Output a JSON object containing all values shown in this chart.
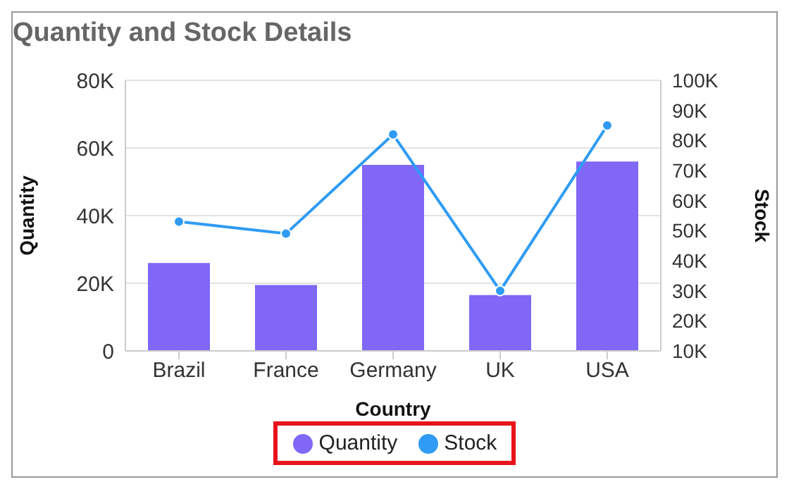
{
  "chart_data": {
    "type": "bar",
    "title": "Quantity and Stock Details",
    "xlabel": "Country",
    "ylabel": "Quantity",
    "y2label": "Stock",
    "categories": [
      "Brazil",
      "France",
      "Germany",
      "UK",
      "USA"
    ],
    "series": [
      {
        "name": "Quantity",
        "color": "#8067f5",
        "values": [
          26000,
          19500,
          55000,
          16500,
          56000
        ]
      },
      {
        "name": "Stock",
        "type": "line",
        "axis": "y2",
        "color": "#2f9bf5",
        "values": [
          53000,
          49000,
          82000,
          30000,
          85000
        ]
      }
    ],
    "ylim": [
      0,
      80000
    ],
    "yticks": [
      {
        "value": 0,
        "label": "0"
      },
      {
        "value": 20000,
        "label": "20K"
      },
      {
        "value": 40000,
        "label": "40K"
      },
      {
        "value": 60000,
        "label": "60K"
      },
      {
        "value": 80000,
        "label": "80K"
      }
    ],
    "y2lim": [
      10000,
      100000
    ],
    "y2ticks": [
      {
        "value": 10000,
        "label": "10K"
      },
      {
        "value": 20000,
        "label": "20K"
      },
      {
        "value": 30000,
        "label": "30K"
      },
      {
        "value": 40000,
        "label": "40K"
      },
      {
        "value": 50000,
        "label": "50K"
      },
      {
        "value": 60000,
        "label": "60K"
      },
      {
        "value": 70000,
        "label": "70K"
      },
      {
        "value": 80000,
        "label": "80K"
      },
      {
        "value": 90000,
        "label": "90K"
      },
      {
        "value": 100000,
        "label": "100K"
      }
    ],
    "grid": "y",
    "legend": "bottom",
    "marker": "circle",
    "line_style": "solid"
  }
}
